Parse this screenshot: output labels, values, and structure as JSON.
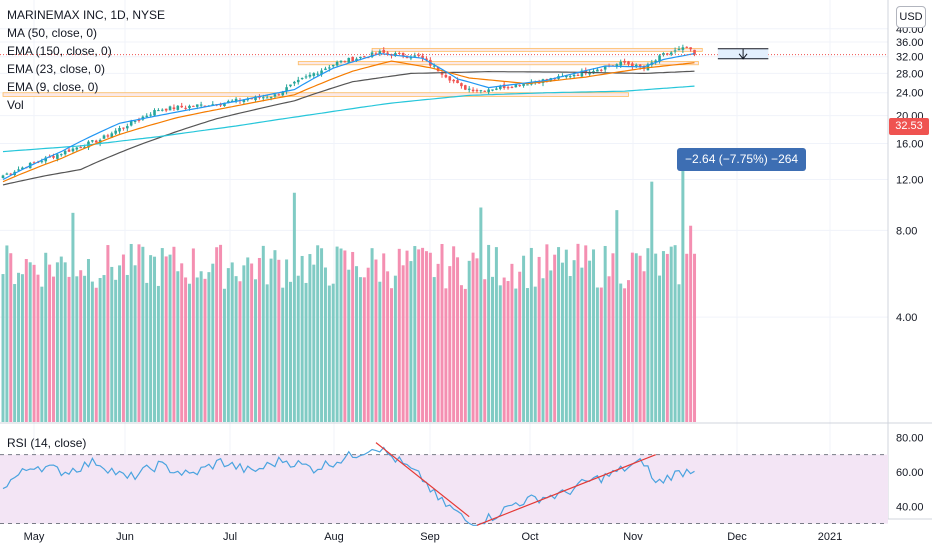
{
  "header": {
    "title": "MARINEMAX INC, 1D, NYSE",
    "indicators": [
      "MA (50, close, 0)",
      "EMA (150, close, 0)",
      "EMA (23, close, 0)",
      "EMA (9, close, 0)",
      "Vol"
    ],
    "currency": "USD",
    "last_price_label": "32.53",
    "measure_label": "−2.64 (−7.75%) −264",
    "rsi_title": "RSI (14, close)"
  },
  "colors": {
    "up": "#26a69a",
    "down": "#ef5350",
    "up_volume": "#80cbc4",
    "down_volume": "#f48fb1",
    "ma50": "#555555",
    "ema150": "#26c6da",
    "ema23": "#f57c00",
    "ema9": "#2196f3",
    "rsi": "#4aa3df",
    "rsi_band": "#f3e5f5",
    "trendline": "#e53935",
    "zone": "#fbe9e7",
    "zone_border": "#ff9800"
  },
  "chart_data": [
    {
      "type": "candlestick",
      "title": "MARINEMAX INC, 1D, NYSE",
      "x_ticks": [
        "May",
        "Jun",
        "Jul",
        "Aug",
        "Sep",
        "Oct",
        "Nov",
        "Dec",
        "2021"
      ],
      "y_ticks": [
        4,
        8,
        12,
        16,
        20,
        24,
        28,
        32,
        36,
        40
      ],
      "y_tick_labels": [
        "4.00",
        "8.00",
        "12.00",
        "16.00",
        "20.00",
        "24.00",
        "28.00",
        "32.00",
        "36.00",
        "40.00"
      ],
      "ylim": [
        1.5,
        45
      ],
      "last_price": 32.53,
      "series_keypoints": [
        {
          "name": "close",
          "points": [
            [
              0,
              12.4
            ],
            [
              10,
              14
            ],
            [
              25,
              16.5
            ],
            [
              40,
              21
            ],
            [
              55,
              22
            ],
            [
              70,
              23.5
            ],
            [
              80,
              28
            ],
            [
              86,
              30.5
            ],
            [
              97,
              33
            ],
            [
              107,
              32
            ],
            [
              118,
              25
            ],
            [
              123,
              24.5
            ],
            [
              135,
              26
            ],
            [
              143,
              27
            ],
            [
              160,
              30.5
            ],
            [
              165,
              29
            ],
            [
              170,
              32.5
            ],
            [
              176,
              34.3
            ],
            [
              178,
              32.5
            ]
          ]
        },
        {
          "name": "MA (50, close, 0)",
          "points": [
            [
              0,
              11.5
            ],
            [
              10,
              12.3
            ],
            [
              20,
              13
            ],
            [
              35,
              15.8
            ],
            [
              55,
              19.5
            ],
            [
              75,
              22.5
            ],
            [
              90,
              26.2
            ],
            [
              105,
              28
            ],
            [
              125,
              28.4
            ],
            [
              145,
              28.3
            ],
            [
              165,
              28
            ],
            [
              178,
              28.5
            ]
          ]
        },
        {
          "name": "EMA (150, close, 0)",
          "points": [
            [
              0,
              15
            ],
            [
              20,
              15.7
            ],
            [
              40,
              16.9
            ],
            [
              60,
              18.4
            ],
            [
              80,
              20.2
            ],
            [
              100,
              22.1
            ],
            [
              120,
              23.5
            ],
            [
              140,
              24
            ],
            [
              160,
              24.3
            ],
            [
              178,
              25.3
            ]
          ]
        },
        {
          "name": "EMA (23, close, 0)",
          "points": [
            [
              0,
              11.8
            ],
            [
              15,
              14.2
            ],
            [
              30,
              17.2
            ],
            [
              45,
              19.7
            ],
            [
              60,
              21.6
            ],
            [
              75,
              23.6
            ],
            [
              90,
              28.5
            ],
            [
              100,
              30.9
            ],
            [
              110,
              29.3
            ],
            [
              120,
              27
            ],
            [
              135,
              25.8
            ],
            [
              150,
              27.2
            ],
            [
              165,
              29.2
            ],
            [
              178,
              30.5
            ]
          ]
        },
        {
          "name": "EMA (9, close, 0)",
          "points": [
            [
              0,
              12
            ],
            [
              15,
              15
            ],
            [
              30,
              18.8
            ],
            [
              45,
              20.6
            ],
            [
              60,
              22.4
            ],
            [
              75,
              24.6
            ],
            [
              85,
              29.2
            ],
            [
              97,
              32.8
            ],
            [
              108,
              31.6
            ],
            [
              117,
              26.8
            ],
            [
              125,
              25
            ],
            [
              140,
              26.5
            ],
            [
              155,
              29.7
            ],
            [
              165,
              29.5
            ],
            [
              170,
              31.3
            ],
            [
              178,
              32.8
            ]
          ]
        }
      ],
      "resistance_zones": [
        {
          "x_start": 95,
          "x_end": 180,
          "low": 33.7,
          "high": 34.2
        },
        {
          "x_start": 76,
          "x_end": 179,
          "low": 30.0,
          "high": 30.8
        },
        {
          "x_start": 0,
          "x_end": 161,
          "low": 23.3,
          "high": 24.0
        }
      ],
      "measure": {
        "from_price": 34.1,
        "to_price": 31.47,
        "x_start": 184,
        "x_end": 197,
        "label": "−2.64 (−7.75%) −264"
      }
    },
    {
      "type": "bar",
      "title": "Vol",
      "series_keypoints": [
        {
          "name": "volume_spikes",
          "points": [
            [
              18,
              9.2
            ],
            [
              75,
              10.8
            ],
            [
              123,
              9.6
            ],
            [
              158,
              9.4
            ],
            [
              167,
              11.8
            ],
            [
              175,
              13.5
            ],
            [
              177,
              8.3
            ]
          ]
        }
      ]
    },
    {
      "type": "line",
      "title": "RSI (14, close)",
      "y_ticks": [
        40,
        60,
        80
      ],
      "y_tick_labels": [
        "40.00",
        "60.00",
        "80.00"
      ],
      "ylim": [
        28,
        82
      ],
      "band": [
        30,
        70
      ],
      "series_keypoints": [
        {
          "name": "RSI",
          "points": [
            [
              0,
              52
            ],
            [
              8,
              64
            ],
            [
              16,
              60
            ],
            [
              24,
              66
            ],
            [
              32,
              56
            ],
            [
              40,
              64
            ],
            [
              48,
              58
            ],
            [
              56,
              66
            ],
            [
              64,
              60
            ],
            [
              72,
              67
            ],
            [
              80,
              62
            ],
            [
              88,
              68
            ],
            [
              96,
              75
            ],
            [
              102,
              66
            ],
            [
              108,
              56
            ],
            [
              112,
              44
            ],
            [
              116,
              38
            ],
            [
              120,
              30
            ],
            [
              126,
              34
            ],
            [
              132,
              42
            ],
            [
              138,
              45
            ],
            [
              144,
              47
            ],
            [
              150,
              54
            ],
            [
              156,
              58
            ],
            [
              160,
              62
            ],
            [
              165,
              66
            ],
            [
              168,
              53
            ],
            [
              172,
              58
            ],
            [
              178,
              62
            ]
          ]
        }
      ],
      "trendlines": [
        {
          "from": [
            96,
            77
          ],
          "to": [
            120,
            34
          ]
        },
        {
          "from": [
            122,
            29
          ],
          "to": [
            168,
            70
          ]
        }
      ]
    }
  ]
}
